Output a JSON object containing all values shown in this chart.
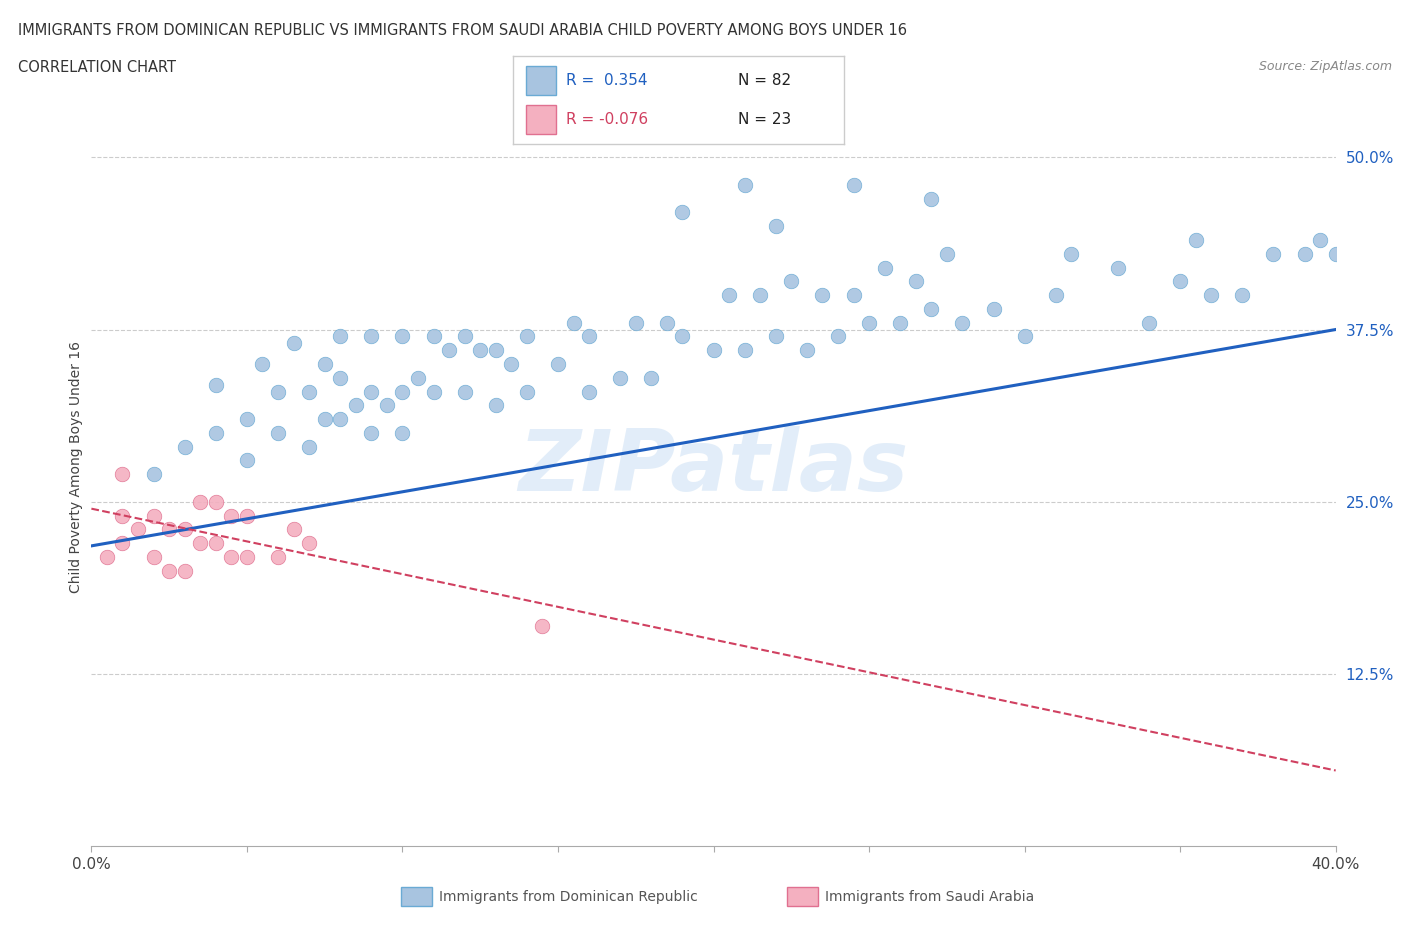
{
  "title_line1": "IMMIGRANTS FROM DOMINICAN REPUBLIC VS IMMIGRANTS FROM SAUDI ARABIA CHILD POVERTY AMONG BOYS UNDER 16",
  "title_line2": "CORRELATION CHART",
  "source": "Source: ZipAtlas.com",
  "ylabel": "Child Poverty Among Boys Under 16",
  "xlim": [
    0.0,
    0.4
  ],
  "ylim": [
    0.0,
    0.55
  ],
  "xticks": [
    0.0,
    0.05,
    0.1,
    0.15,
    0.2,
    0.25,
    0.3,
    0.35,
    0.4
  ],
  "ytick_right_labels": [
    "12.5%",
    "25.0%",
    "37.5%",
    "50.0%"
  ],
  "ytick_right_vals": [
    0.125,
    0.25,
    0.375,
    0.5
  ],
  "watermark": "ZIPatlas",
  "blue_color": "#a8c4e0",
  "blue_edge": "#6aaad4",
  "pink_color": "#f4b0c0",
  "pink_edge": "#e07090",
  "blue_line_color": "#2060c0",
  "pink_line_color": "#d04060",
  "legend_r_blue": "R =  0.354",
  "legend_n_blue": "N = 82",
  "legend_r_pink": "R = -0.076",
  "legend_n_pink": "N = 23",
  "blue_trend_x0": 0.0,
  "blue_trend_y0": 0.218,
  "blue_trend_x1": 0.4,
  "blue_trend_y1": 0.375,
  "pink_trend_x0": 0.0,
  "pink_trend_y0": 0.245,
  "pink_trend_x1": 0.4,
  "pink_trend_y1": 0.055,
  "blue_dots_x": [
    0.02,
    0.03,
    0.04,
    0.04,
    0.05,
    0.05,
    0.055,
    0.06,
    0.06,
    0.065,
    0.07,
    0.07,
    0.075,
    0.075,
    0.08,
    0.08,
    0.08,
    0.085,
    0.09,
    0.09,
    0.09,
    0.095,
    0.1,
    0.1,
    0.1,
    0.105,
    0.11,
    0.11,
    0.115,
    0.12,
    0.12,
    0.125,
    0.13,
    0.13,
    0.135,
    0.14,
    0.14,
    0.15,
    0.155,
    0.16,
    0.16,
    0.17,
    0.175,
    0.18,
    0.185,
    0.19,
    0.2,
    0.205,
    0.21,
    0.215,
    0.22,
    0.225,
    0.23,
    0.235,
    0.24,
    0.245,
    0.25,
    0.255,
    0.26,
    0.265,
    0.27,
    0.275,
    0.28,
    0.29,
    0.3,
    0.31,
    0.315,
    0.33,
    0.34,
    0.35,
    0.355,
    0.36,
    0.37,
    0.38,
    0.39,
    0.395,
    0.4,
    0.19,
    0.21,
    0.22,
    0.245,
    0.27
  ],
  "blue_dots_y": [
    0.27,
    0.29,
    0.3,
    0.335,
    0.28,
    0.31,
    0.35,
    0.3,
    0.33,
    0.365,
    0.29,
    0.33,
    0.31,
    0.35,
    0.31,
    0.34,
    0.37,
    0.32,
    0.3,
    0.33,
    0.37,
    0.32,
    0.3,
    0.33,
    0.37,
    0.34,
    0.33,
    0.37,
    0.36,
    0.33,
    0.37,
    0.36,
    0.32,
    0.36,
    0.35,
    0.33,
    0.37,
    0.35,
    0.38,
    0.33,
    0.37,
    0.34,
    0.38,
    0.34,
    0.38,
    0.37,
    0.36,
    0.4,
    0.36,
    0.4,
    0.37,
    0.41,
    0.36,
    0.4,
    0.37,
    0.4,
    0.38,
    0.42,
    0.38,
    0.41,
    0.39,
    0.43,
    0.38,
    0.39,
    0.37,
    0.4,
    0.43,
    0.42,
    0.38,
    0.41,
    0.44,
    0.4,
    0.4,
    0.43,
    0.43,
    0.44,
    0.43,
    0.46,
    0.48,
    0.45,
    0.48,
    0.47
  ],
  "pink_dots_x": [
    0.005,
    0.01,
    0.01,
    0.01,
    0.015,
    0.02,
    0.02,
    0.025,
    0.025,
    0.03,
    0.03,
    0.035,
    0.035,
    0.04,
    0.04,
    0.045,
    0.045,
    0.05,
    0.05,
    0.06,
    0.065,
    0.07,
    0.145
  ],
  "pink_dots_y": [
    0.21,
    0.22,
    0.24,
    0.27,
    0.23,
    0.21,
    0.24,
    0.2,
    0.23,
    0.2,
    0.23,
    0.22,
    0.25,
    0.22,
    0.25,
    0.21,
    0.24,
    0.21,
    0.24,
    0.21,
    0.23,
    0.22,
    0.16
  ]
}
